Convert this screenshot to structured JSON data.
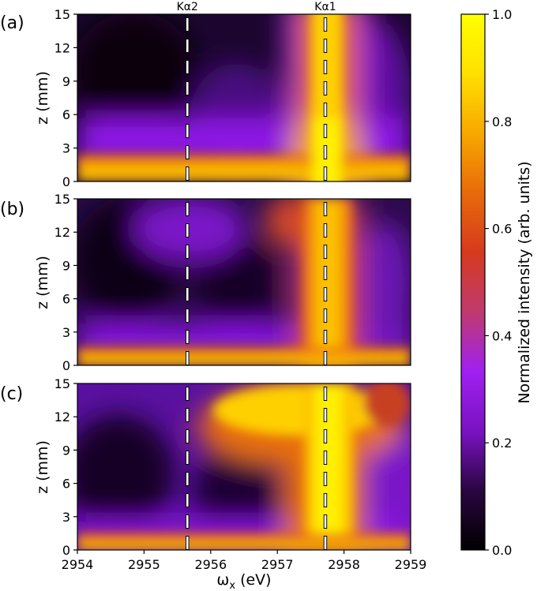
{
  "chart_data": {
    "type": "heatmap",
    "panels": [
      {
        "id": "a",
        "label": "(a)"
      },
      {
        "id": "b",
        "label": "(b)"
      },
      {
        "id": "c",
        "label": "(c)"
      }
    ],
    "x": {
      "label": "ω",
      "label_sub": "x",
      "label_unit": " (eV)",
      "range": [
        2954,
        2959
      ],
      "ticks": [
        2954,
        2955,
        2956,
        2957,
        2958,
        2959
      ]
    },
    "y": {
      "label": "z (mm)",
      "range": [
        0,
        15
      ],
      "ticks": [
        0,
        3,
        6,
        9,
        12,
        15
      ]
    },
    "reference_lines": [
      {
        "label": "Kα2",
        "x": 2955.65
      },
      {
        "label": "Kα1",
        "x": 2957.72
      }
    ],
    "colorbar": {
      "label": "Normalized intensity (arb. units)",
      "range": [
        0.0,
        1.0
      ],
      "ticks": [
        "0.0",
        "0.2",
        "0.4",
        "0.6",
        "0.8",
        "1.0"
      ],
      "colormap": [
        "#000000",
        "#2a0640",
        "#7a12c2",
        "#a020f0",
        "#c03a6e",
        "#d63a1e",
        "#e86a0a",
        "#f8a800",
        "#ffe000",
        "#ffff00"
      ]
    }
  }
}
